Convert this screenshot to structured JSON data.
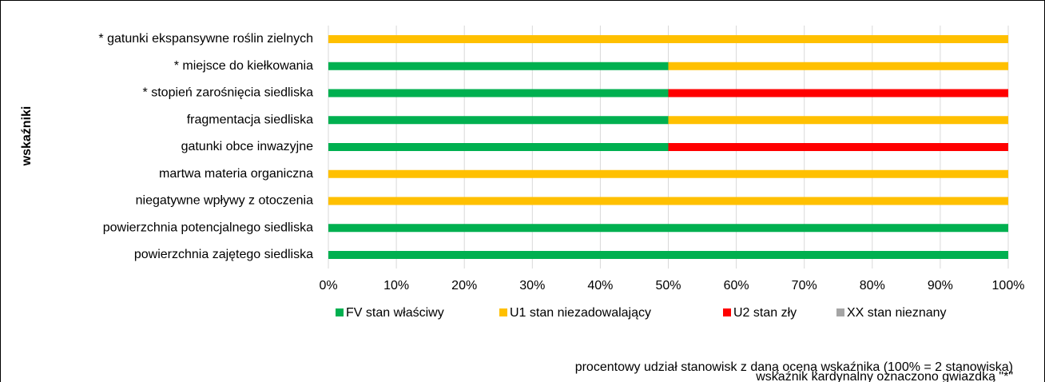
{
  "chart_data": {
    "type": "bar",
    "orientation": "horizontal",
    "stacked": true,
    "ylabel": "wskaźniki",
    "categories": [
      "* gatunki ekspansywne roślin zielnych",
      "* miejsce do kiełkowania",
      "* stopień zarośnięcia siedliska",
      "fragmentacja siedliska",
      "gatunki obce inwazyjne",
      "martwa materia organiczna",
      "niegatywne wpływy z otoczenia",
      "powierzchnia potencjalnego siedliska",
      "powierzchnia zajętego siedliska"
    ],
    "series": [
      {
        "name": "FV stan właściwy",
        "color": "#00b050",
        "values": [
          0,
          50,
          50,
          50,
          50,
          0,
          0,
          100,
          100
        ]
      },
      {
        "name": "U1 stan niezadowalający",
        "color": "#ffc000",
        "values": [
          100,
          50,
          0,
          50,
          0,
          100,
          100,
          0,
          0
        ]
      },
      {
        "name": "U2 stan zły",
        "color": "#ff0000",
        "values": [
          0,
          0,
          50,
          0,
          50,
          0,
          0,
          0,
          0
        ]
      },
      {
        "name": "XX stan nieznany",
        "color": "#a5a5a5",
        "values": [
          0,
          0,
          0,
          0,
          0,
          0,
          0,
          0,
          0
        ]
      }
    ],
    "xlim": [
      0,
      100
    ],
    "xticks": [
      {
        "value": 0,
        "label": "0%"
      },
      {
        "value": 10,
        "label": "10%"
      },
      {
        "value": 20,
        "label": "20%"
      },
      {
        "value": 30,
        "label": "30%"
      },
      {
        "value": 40,
        "label": "40%"
      },
      {
        "value": 50,
        "label": "50%"
      },
      {
        "value": 60,
        "label": "60%"
      },
      {
        "value": 70,
        "label": "70%"
      },
      {
        "value": 80,
        "label": "80%"
      },
      {
        "value": 90,
        "label": "90%"
      },
      {
        "value": 100,
        "label": "100%"
      }
    ],
    "grid": true,
    "legend": "bottom",
    "annotations": [
      "procentowy udział stanowisk z daną oceną wskaźnika (100% = 2 stanowiska)",
      "wskaźnik kardynalny oznaczono gwiazdką \"*\""
    ]
  }
}
